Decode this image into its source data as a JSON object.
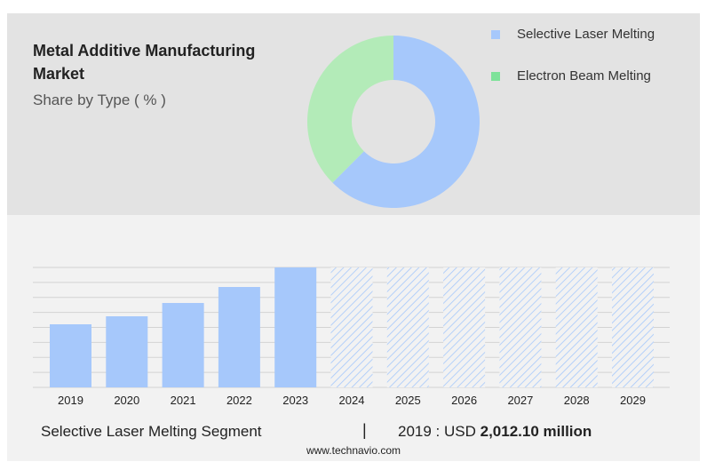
{
  "chart_data": [
    {
      "type": "pie",
      "variant": "donut",
      "title": "Metal Additive Manufacturing Market",
      "subtitle": "Share by Type ( % )",
      "slices": [
        {
          "name": "Selective Laser Melting",
          "value": 62.5,
          "color": "#a6c8fb"
        },
        {
          "name": "Electron Beam Melting",
          "value": 37.5,
          "color": "#b3ebb8"
        }
      ],
      "legend_colors": [
        "#a6c8fb",
        "#7ee29a"
      ],
      "legend_position": "right"
    },
    {
      "type": "bar",
      "categories": [
        "2019",
        "2020",
        "2021",
        "2022",
        "2023",
        "2024",
        "2025",
        "2026",
        "2027",
        "2028",
        "2029"
      ],
      "values": [
        2012.1,
        2267,
        2692,
        3202,
        3826,
        null,
        null,
        null,
        null,
        null,
        null
      ],
      "forecast_from": "2024",
      "bar_color": "#a6c8fb",
      "forecast_style": "hatched",
      "ylim": [
        0,
        3826
      ],
      "grid": true,
      "xlabel": "",
      "ylabel": ""
    }
  ],
  "footer": {
    "segment": "Selective Laser Melting Segment",
    "separator": "|",
    "year_label": "2019 : USD",
    "value": "2,012.10 million",
    "site": "www.technavio.com"
  }
}
